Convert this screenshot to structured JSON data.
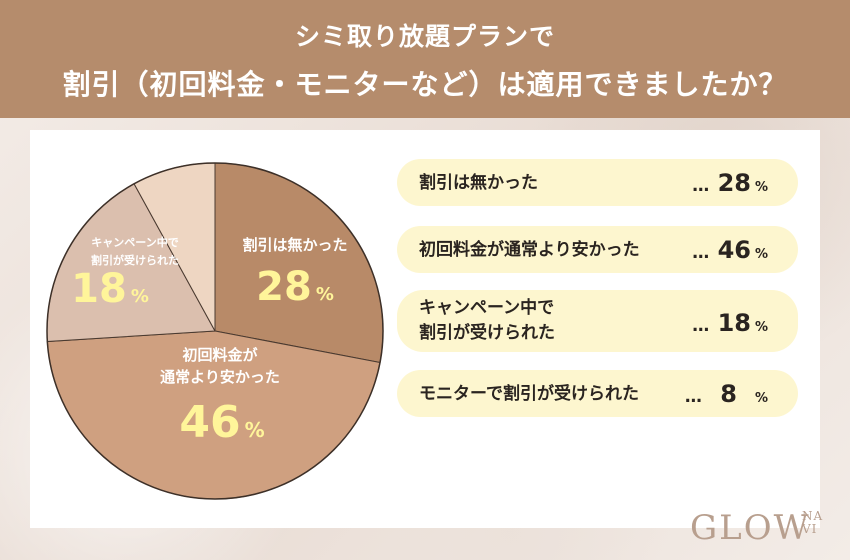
{
  "header": {
    "line1": "シミ取り放題プランで",
    "line2": "割引（初回料金・モニターなど）は適用できましたか？"
  },
  "chart_data": {
    "type": "pie",
    "title": "シミ取り放題プランで割引（初回料金・モニターなど）は適用できましたか？",
    "slices": [
      {
        "label": "割引は無かった",
        "value": 28,
        "color": "#b88a68",
        "pie_label": [
          "割引は無かった"
        ],
        "label_color": "#ffffff",
        "value_color": "#fff59a"
      },
      {
        "label": "初回料金が通常より安かった",
        "value": 46,
        "color": "#cfa080",
        "pie_label": [
          "初回料金が",
          "通常より安かった"
        ],
        "label_color": "#ffffff",
        "value_color": "#fff59a"
      },
      {
        "label": "キャンペーン中で割引が受けられた",
        "value": 18,
        "color": "#dbbfae",
        "pie_label": [
          "キャンペーン中で",
          "割引が受けられた"
        ],
        "label_color": "#ffffff",
        "value_color": "#fff59a"
      },
      {
        "label": "モニターで割引が受けられた",
        "value": 8,
        "color": "#eed6c2",
        "pie_label": [],
        "label_color": "#ffffff",
        "value_color": "#fff59a"
      }
    ],
    "percent_sign": "%"
  },
  "legend": [
    {
      "label_lines": [
        "割引は無かった"
      ],
      "dots": "…",
      "value": "28",
      "pct": "%"
    },
    {
      "label_lines": [
        "初回料金が通常より安かった"
      ],
      "dots": "…",
      "value": "46",
      "pct": "%"
    },
    {
      "label_lines": [
        "キャンペーン中で",
        "割引が受けられた"
      ],
      "dots": "…",
      "value": "18",
      "pct": "%"
    },
    {
      "label_lines": [
        "モニターで割引が受けられた"
      ],
      "dots": "…",
      "value": "8",
      "pct": "%"
    }
  ],
  "logo": {
    "main": "GLOW",
    "sub_top": "NA",
    "sub_bottom": "VI"
  }
}
